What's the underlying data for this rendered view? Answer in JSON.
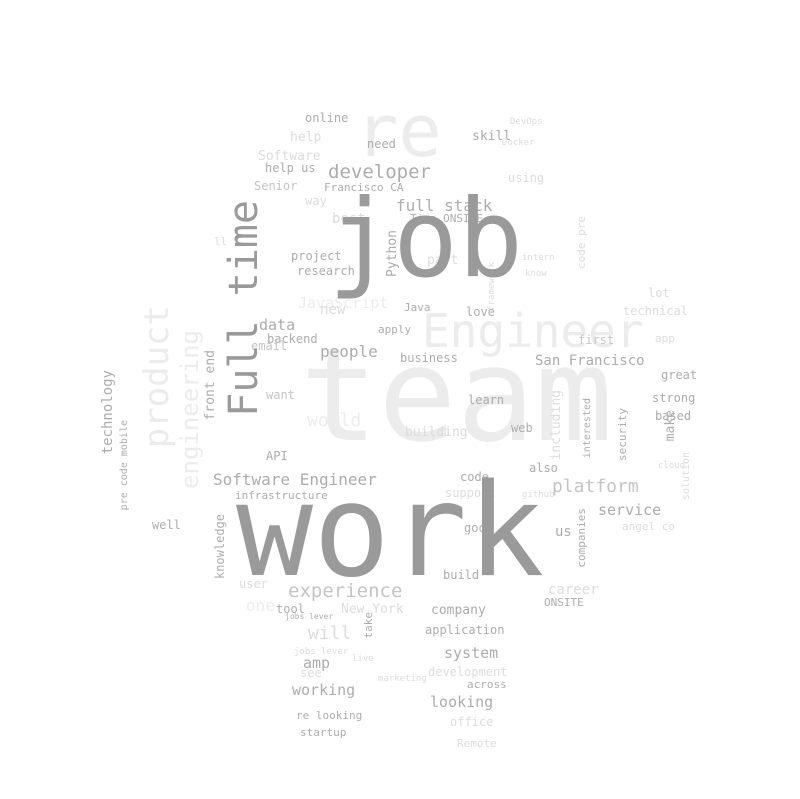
{
  "words": {
    "team": "team",
    "work": "work",
    "job": "job",
    "re": "re",
    "engineer": "Engineer",
    "product": "product",
    "full_time": "Full time",
    "software_engineer": "Software Engineer",
    "experience": "experience",
    "san_francisco": "San Francisco",
    "developer": "developer",
    "full_stack": "full stack",
    "platform": "platform",
    "service": "service",
    "people": "people",
    "data": "data",
    "technology": "technology",
    "front_end": "front end",
    "python": "Python",
    "make": "make",
    "career": "career",
    "system": "system",
    "looking": "looking",
    "working": "working",
    "company": "company",
    "amp": "amp",
    "help": "help",
    "help_us": "help us",
    "online": "online",
    "need": "need",
    "skill": "skill",
    "senior": "Senior",
    "francisco_ca": "Francisco CA",
    "time_onsite": "Time ONSITE",
    "project": "project",
    "research": "research",
    "javascript": "JavaScript",
    "apply": "apply",
    "backend": "backend",
    "email": "email",
    "want": "want",
    "api": "API",
    "infrastructure": "infrastructure",
    "well": "well",
    "knowledge": "knowledge",
    "user": "user",
    "tool": "tool",
    "new_york": "New York",
    "will": "will",
    "take": "take",
    "application": "application",
    "onsite": "ONSITE",
    "build": "build",
    "code": "code",
    "support": "support",
    "good": "good",
    "also": "also",
    "learn": "learn",
    "building": "building",
    "web": "web",
    "business": "business",
    "love": "love",
    "java": "Java",
    "part": "part",
    "technical": "technical",
    "strong": "strong",
    "based": "based",
    "great": "great",
    "angel_co": "angel co",
    "security": "security",
    "interested": "interested",
    "companies": "companies",
    "including": "including",
    "us": "us",
    "development": "development",
    "across": "across",
    "office": "office",
    "remote": "Remote",
    "startup": "startup",
    "re_looking": "re looking",
    "pre_code_mobile": "pre code mobile",
    "first": "first",
    "app": "app",
    "lot": "lot",
    "new": "new",
    "best": "best",
    "way": "way",
    "software": "Software",
    "ll": "ll",
    "docker": "Docker",
    "devops": "DevOps",
    "know": "know",
    "intern": "intern",
    "framework": "framework",
    "solution": "solution",
    "cloud": "cloud",
    "github": "github",
    "jobs_lever": "jobs lever",
    "marketing": "marketing",
    "live": "live",
    "see": "see",
    "engineering": "engineering",
    "world": "world",
    "code_pre": "code pre",
    "using": "using",
    "one": "one"
  }
}
